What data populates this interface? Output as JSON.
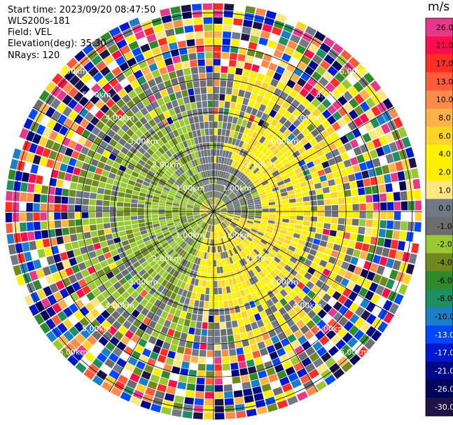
{
  "header": {
    "start_time": "Start time: 2023/09/20 08:47:50",
    "instrument": "WLS200s-181",
    "field": "Field: VEL",
    "elevation": "Elevation(deg): 35.30",
    "nrays": "NRays: 120"
  },
  "colorbar": {
    "unit": "m/s",
    "bins": [
      {
        "value": "26.0",
        "color": "#e8388a"
      },
      {
        "value": "21.0",
        "color": "#ff0d4c"
      },
      {
        "value": "17.0",
        "color": "#ff2e24"
      },
      {
        "value": "13.0",
        "color": "#ff5a3a"
      },
      {
        "value": "10.0",
        "color": "#ff8a4a"
      },
      {
        "value": "8.0",
        "color": "#ffb347"
      },
      {
        "value": "6.0",
        "color": "#ffd32a"
      },
      {
        "value": "4.0",
        "color": "#fff200"
      },
      {
        "value": "2.0",
        "color": "#ffee00"
      },
      {
        "value": "1.0",
        "color": "#ffe680"
      },
      {
        "value": "0.0",
        "color": "#6f7a86"
      },
      {
        "value": "-1.0",
        "color": "#6d6d6d"
      },
      {
        "value": "-2.0",
        "color": "#9ac832"
      },
      {
        "value": "-4.0",
        "color": "#6e8a1e"
      },
      {
        "value": "-6.0",
        "color": "#2f8a2a"
      },
      {
        "value": "-8.0",
        "color": "#1f8f60"
      },
      {
        "value": "-10.0",
        "color": "#1b7fc8"
      },
      {
        "value": "-13.0",
        "color": "#0048ff"
      },
      {
        "value": "-17.0",
        "color": "#0018d0"
      },
      {
        "value": "-21.0",
        "color": "#00088a"
      },
      {
        "value": "-26.0",
        "color": "#00045a"
      },
      {
        "value": "-30.0",
        "color": "#1e1446"
      }
    ]
  },
  "range_rings": [
    {
      "label": "1.00km",
      "range_km": 1
    },
    {
      "label": "2.00km",
      "range_km": 2
    },
    {
      "label": "3.00km",
      "range_km": 3
    },
    {
      "label": "4.00km",
      "range_km": 4
    },
    {
      "label": "5.00km",
      "range_km": 5
    },
    {
      "label": "6.00km",
      "range_km": 6
    }
  ],
  "chart_data": {
    "type": "heatmap",
    "projection": "polar PPI",
    "field": "VEL",
    "units": "m/s",
    "nrays": 120,
    "range_max_km": 6.3,
    "range_rings_km": [
      1,
      2,
      3,
      4,
      5,
      6
    ],
    "zones": [
      {
        "range_km": [
          0,
          0.4
        ],
        "pattern": "mixed",
        "az_deg": [
          0,
          360
        ]
      },
      {
        "range_km": [
          0.4,
          1.4
        ],
        "pattern": "negative near-zero (olive / green)",
        "az_deg": [
          200,
          340
        ]
      },
      {
        "range_km": [
          0.4,
          1.4
        ],
        "pattern": "gray (about -1 to 0 m/s)",
        "az_deg": [
          340,
          200
        ]
      },
      {
        "range_km": [
          1.4,
          2.9
        ],
        "pattern": "positive (yellow)",
        "az_deg": [
          20,
          200
        ]
      },
      {
        "range_km": [
          1.4,
          2.9
        ],
        "pattern": "negative (green)",
        "az_deg": [
          200,
          360
        ]
      },
      {
        "range_km": [
          1.4,
          2.9
        ],
        "pattern": "gray",
        "az_deg": [
          340,
          20
        ]
      },
      {
        "range_km": [
          2.9,
          4.4
        ],
        "pattern": "yellow east / green west with noise",
        "az_deg": [
          0,
          360
        ]
      },
      {
        "range_km": [
          4.4,
          6.3
        ],
        "pattern": "noise (all bins)",
        "az_deg": [
          0,
          360
        ]
      }
    ]
  }
}
